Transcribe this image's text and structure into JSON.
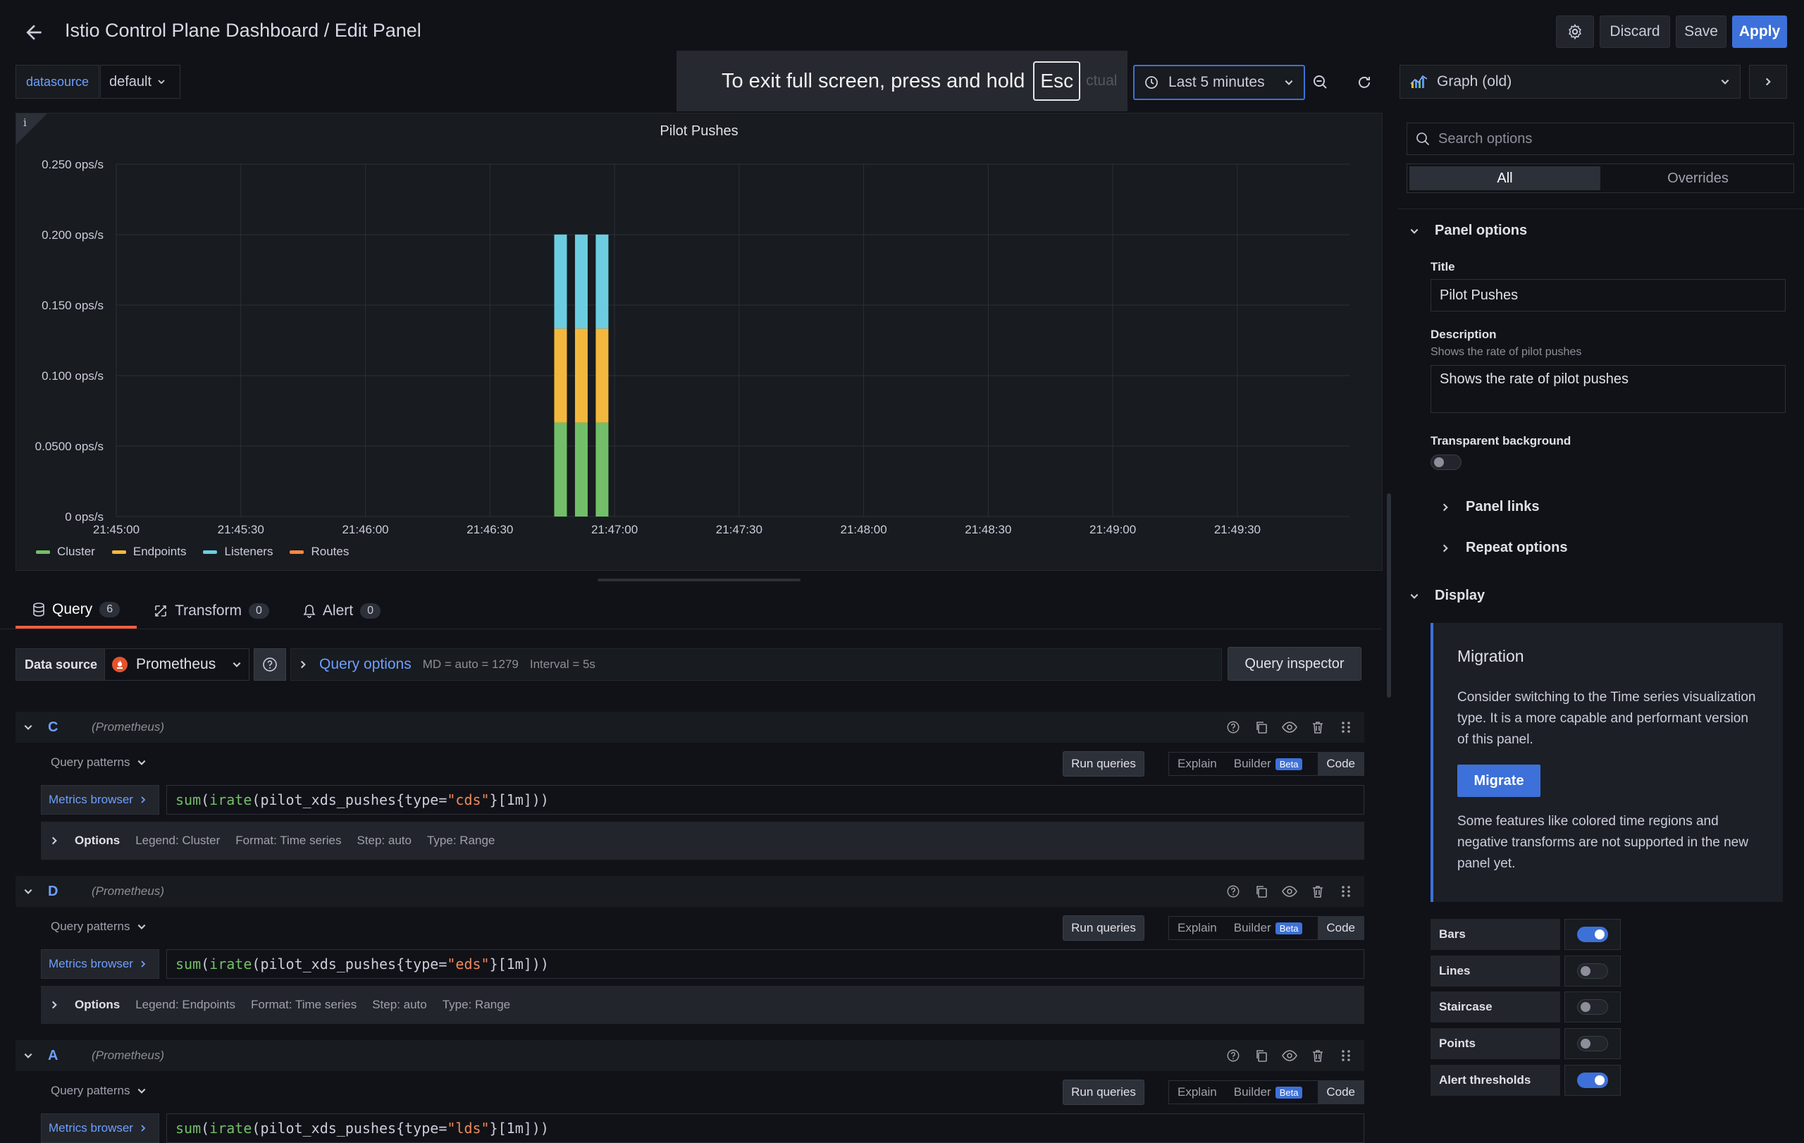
{
  "header": {
    "title": "Istio Control Plane Dashboard / Edit Panel",
    "discard_label": "Discard",
    "save_label": "Save",
    "apply_label": "Apply"
  },
  "toolbar": {
    "variable_label": "datasource",
    "variable_value": "default",
    "fullscreen_toast": "To exit full screen, press and hold",
    "esc_key": "Esc",
    "toast_hidden_text": "ctual",
    "time_range": "Last 5 minutes"
  },
  "viz_picker": {
    "value": "Graph (old)"
  },
  "panel": {
    "info": "i",
    "title": "Pilot Pushes",
    "legend": [
      {
        "name": "Cluster",
        "color": "#73bf69"
      },
      {
        "name": "Endpoints",
        "color": "#f2b83e"
      },
      {
        "name": "Listeners",
        "color": "#6ccde1"
      },
      {
        "name": "Routes",
        "color": "#f8873f"
      }
    ]
  },
  "chart_data": {
    "type": "bar",
    "stacked": true,
    "title": "Pilot Pushes",
    "yticks": [
      "0 ops/s",
      "0.0500 ops/s",
      "0.100 ops/s",
      "0.150 ops/s",
      "0.200 ops/s",
      "0.250 ops/s"
    ],
    "ylim": [
      0,
      0.25
    ],
    "xticks": [
      "21:45:00",
      "21:45:30",
      "21:46:00",
      "21:46:30",
      "21:47:00",
      "21:47:30",
      "21:48:00",
      "21:48:30",
      "21:49:00",
      "21:49:30"
    ],
    "x_range_seconds": [
      0,
      297
    ],
    "grid": true,
    "legend_placement": "bottom-left",
    "x": [
      "21:46:47",
      "21:46:52",
      "21:46:57"
    ],
    "series": [
      {
        "name": "Cluster",
        "color": "#73bf69",
        "values": [
          0.0667,
          0.0667,
          0.0667
        ]
      },
      {
        "name": "Endpoints",
        "color": "#f2b83e",
        "values": [
          0.0667,
          0.0667,
          0.0667
        ]
      },
      {
        "name": "Listeners",
        "color": "#6ccde1",
        "values": [
          0.0667,
          0.0667,
          0.0667
        ]
      },
      {
        "name": "Routes",
        "color": "#f8873f",
        "values": [
          0,
          0,
          0
        ]
      }
    ]
  },
  "tabs": [
    {
      "label": "Query",
      "count": "6"
    },
    {
      "label": "Transform",
      "count": "0"
    },
    {
      "label": "Alert",
      "count": "0"
    }
  ],
  "query_header": {
    "datasource_label": "Data source",
    "datasource_value": "Prometheus",
    "query_options_label": "Query options",
    "md_info": "MD = auto = 1279",
    "interval_info": "Interval = 5s",
    "inspector_label": "Query inspector"
  },
  "queries": [
    {
      "ref": "C",
      "ds": "(Prometheus)",
      "patterns": "Query patterns",
      "run": "Run queries",
      "modes": [
        "Explain",
        "Builder",
        "Beta",
        "Code"
      ],
      "metrics_browser": "Metrics browser",
      "code": {
        "fn1": "sum",
        "p1": "(",
        "fn2": "irate",
        "p2": "(",
        "metric": "pilot_xds_pushes{",
        "lbl": "type",
        "eq": "=",
        "val": "\"cds\"",
        "tail": "}[1m]))"
      },
      "options": {
        "label": "Options",
        "legend": "Legend: Cluster",
        "format": "Format: Time series",
        "step": "Step: auto",
        "type": "Type: Range"
      }
    },
    {
      "ref": "D",
      "ds": "(Prometheus)",
      "patterns": "Query patterns",
      "run": "Run queries",
      "modes": [
        "Explain",
        "Builder",
        "Beta",
        "Code"
      ],
      "metrics_browser": "Metrics browser",
      "code": {
        "fn1": "sum",
        "p1": "(",
        "fn2": "irate",
        "p2": "(",
        "metric": "pilot_xds_pushes{",
        "lbl": "type",
        "eq": "=",
        "val": "\"eds\"",
        "tail": "}[1m]))"
      },
      "options": {
        "label": "Options",
        "legend": "Legend: Endpoints",
        "format": "Format: Time series",
        "step": "Step: auto",
        "type": "Type: Range"
      }
    },
    {
      "ref": "A",
      "ds": "(Prometheus)",
      "patterns": "Query patterns",
      "run": "Run queries",
      "modes": [
        "Explain",
        "Builder",
        "Beta",
        "Code"
      ],
      "metrics_browser": "Metrics browser",
      "code": {
        "fn1": "sum",
        "p1": "(",
        "fn2": "irate",
        "p2": "(",
        "metric": "pilot_xds_pushes{",
        "lbl": "type",
        "eq": "=",
        "val": "\"lds\"",
        "tail": "}[1m]))"
      }
    }
  ],
  "sidebar": {
    "search_placeholder": "Search options",
    "seg_all": "All",
    "seg_overrides": "Overrides",
    "panel_options": "Panel options",
    "title_label": "Title",
    "title_value": "Pilot Pushes",
    "desc_label": "Description",
    "desc_hint": "Shows the rate of pilot pushes",
    "desc_value": "Shows the rate of pilot pushes",
    "transparent_label": "Transparent background",
    "panel_links": "Panel links",
    "repeat_options": "Repeat options",
    "display": "Display",
    "migration": {
      "title": "Migration",
      "text1": "Consider switching to the Time series visualization type. It is a more capable and performant version of this panel.",
      "button": "Migrate",
      "text2": "Some features like colored time regions and negative transforms are not supported in the new panel yet."
    },
    "toggles": [
      {
        "label": "Bars",
        "on": true
      },
      {
        "label": "Lines",
        "on": false
      },
      {
        "label": "Staircase",
        "on": false
      },
      {
        "label": "Points",
        "on": false
      },
      {
        "label": "Alert thresholds",
        "on": true
      }
    ]
  }
}
